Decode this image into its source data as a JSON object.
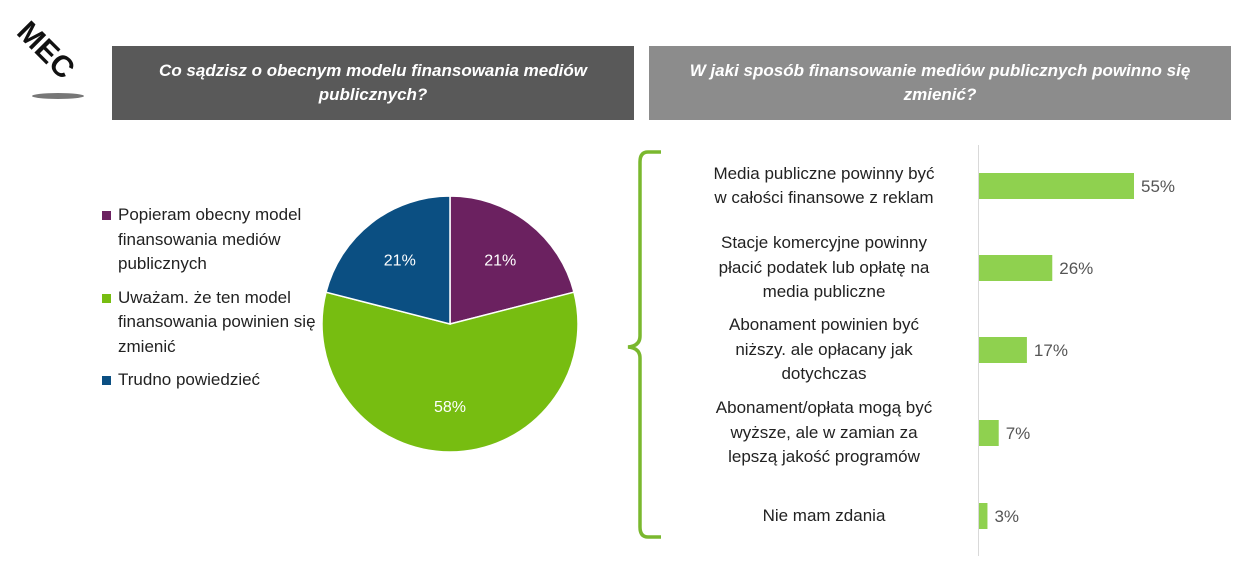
{
  "logo": {
    "text": "MEC"
  },
  "header": {
    "left_title": "Co sądzisz o obecnym modelu finansowania mediów publicznych?",
    "right_title": "W jaki sposób finansowanie mediów publicznych powinno się zmienić?"
  },
  "colors": {
    "header_left_bg": "#595959",
    "header_right_bg": "#8c8c8c",
    "purple": "#6b2160",
    "green": "#77bd11",
    "blue": "#0b4f82",
    "bar_green": "#8fd14f",
    "bracket_green": "#7ab82e"
  },
  "legend": [
    {
      "label": "Popieram obecny model finansowania mediów publicznych",
      "color": "#6b2160"
    },
    {
      "label": "Uważam. że ten model finansowania powinien się zmienić",
      "color": "#77bd11"
    },
    {
      "label": "Trudno powiedzieć",
      "color": "#0b4f82"
    }
  ],
  "chart_data": [
    {
      "type": "pie",
      "title": "Co sądzisz o obecnym modelu finansowania mediów publicznych?",
      "slices": [
        {
          "label": "Popieram obecny model finansowania mediów publicznych",
          "value": 21,
          "display": "21%",
          "color": "#6b2160"
        },
        {
          "label": "Uważam. że ten model finansowania powinien się zmienić",
          "value": 58,
          "display": "58%",
          "color": "#77bd11"
        },
        {
          "label": "Trudno powiedzieć",
          "value": 21,
          "display": "21%",
          "color": "#0b4f82"
        }
      ]
    },
    {
      "type": "bar",
      "orientation": "horizontal",
      "title": "W jaki sposób finansowanie mediów publicznych powinno się zmienić?",
      "categories": [
        "Media publiczne powinny być w całości finansowe z reklam",
        "Stacje komercyjne powinny płacić podatek lub opłatę na media publiczne",
        "Abonament powinien być niższy. ale opłacany jak dotychczas",
        "Abonament/opłata mogą być wyższe, ale w zamian za lepszą jakość programów",
        "Nie mam zdania"
      ],
      "category_lines": [
        [
          "Media publiczne powinny być",
          "w całości finansowe z reklam"
        ],
        [
          "Stacje komercyjne powinny",
          "płacić podatek lub opłatę na",
          "media publiczne"
        ],
        [
          "Abonament powinien być",
          "niższy. ale opłacany jak",
          "dotychczas"
        ],
        [
          "Abonament/opłata mogą być",
          "wyższe, ale w zamian za",
          "lepszą jakość programów"
        ],
        [
          "Nie mam zdania"
        ]
      ],
      "values": [
        55,
        26,
        17,
        7,
        3
      ],
      "value_labels": [
        "55%",
        "26%",
        "17%",
        "7%",
        "3%"
      ],
      "color": "#8fd14f"
    }
  ]
}
